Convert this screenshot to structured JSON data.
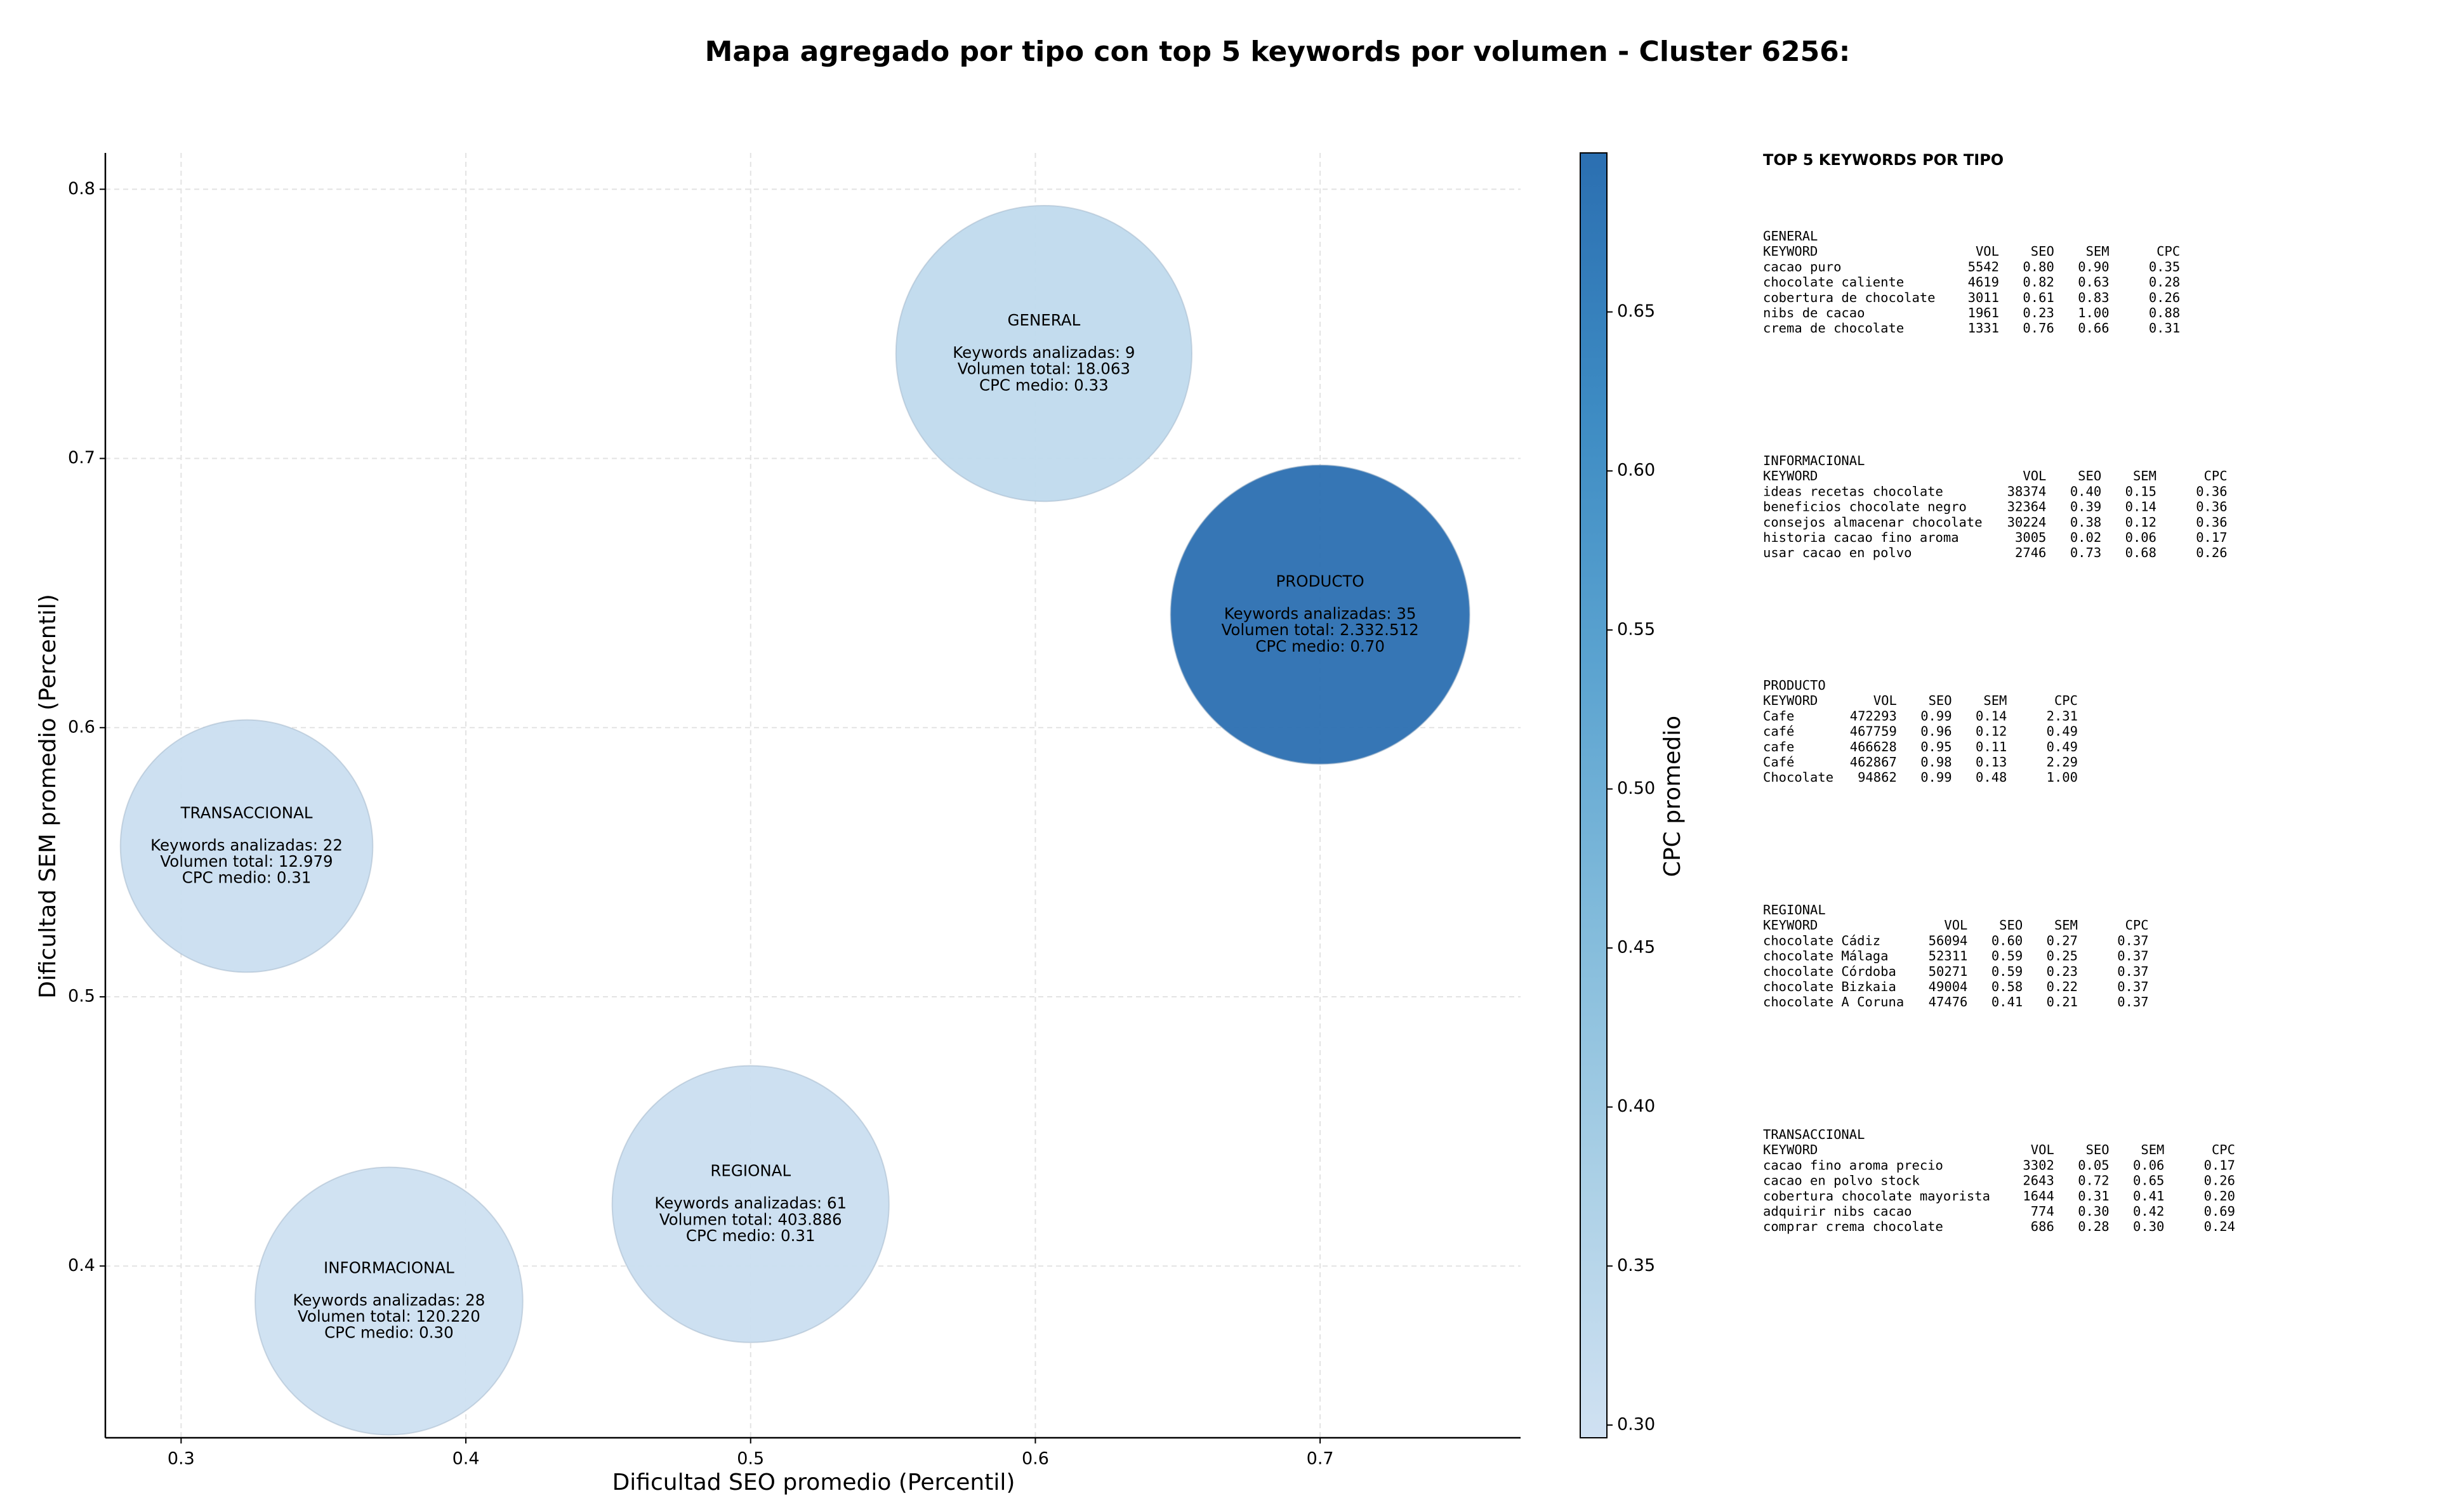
{
  "chart_data": {
    "type": "scatter",
    "title": "Mapa agregado por tipo con top 5 keywords por volumen - Cluster 6256:",
    "x_label": "Dificultad SEO promedio (Percentil)",
    "y_label": "Dificultad SEM promedio (Percentil)",
    "colorbar_label": "CPC promedio",
    "xlim": [
      0.2734,
      0.7704
    ],
    "ylim": [
      0.3362,
      0.8135
    ],
    "xticks": [
      {
        "value": 0.3,
        "label": "0.3"
      },
      {
        "value": 0.4,
        "label": "0.4"
      },
      {
        "value": 0.5,
        "label": "0.5"
      },
      {
        "value": 0.6,
        "label": "0.6"
      },
      {
        "value": 0.7,
        "label": "0.7"
      }
    ],
    "yticks": [
      {
        "value": 0.4,
        "label": "0.4"
      },
      {
        "value": 0.5,
        "label": "0.5"
      },
      {
        "value": 0.6,
        "label": "0.6"
      },
      {
        "value": 0.7,
        "label": "0.7"
      },
      {
        "value": 0.8,
        "label": "0.8"
      }
    ],
    "clim": [
      0.296,
      0.7
    ],
    "cticks": [
      {
        "value": 0.3,
        "label": "0.30"
      },
      0.35,
      {
        "value": 0.4,
        "label": "0.40"
      },
      0.45,
      {
        "value": 0.5,
        "label": "0.50"
      },
      0.55,
      {
        "value": 0.6,
        "label": "0.60"
      },
      0.65
    ],
    "cmap_colors": [
      "#d0e1f2",
      "#abd0e6",
      "#82bbdb",
      "#5ba3d0",
      "#3d8bc3",
      "#2b6fb1"
    ],
    "grid": true,
    "x": [
      0.603,
      0.7,
      0.323,
      0.373,
      0.5
    ],
    "y": [
      0.739,
      0.642,
      0.556,
      0.387,
      0.423
    ],
    "sizes": [
      8800,
      9000,
      6400,
      7200,
      7700
    ],
    "color_values": [
      0.33,
      0.7,
      0.31,
      0.3,
      0.31
    ],
    "annotations": [
      [
        "GENERAL",
        "Keywords analizadas: 9",
        "Volumen total: 18.063",
        "CPC medio: 0.33"
      ],
      [
        "PRODUCTO",
        "Keywords analizadas: 35",
        "Volumen total: 2.332.512",
        "CPC medio: 0.70"
      ],
      [
        "TRANSACCIONAL",
        "Keywords analizadas: 22",
        "Volumen total: 12.979",
        "CPC medio: 0.31"
      ],
      [
        "INFORMACIONAL",
        "Keywords analizadas: 28",
        "Volumen total: 120.220",
        "CPC medio: 0.30"
      ],
      [
        "REGIONAL",
        "Keywords analizadas: 61",
        "Volumen total: 403.886",
        "CPC medio: 0.31"
      ]
    ]
  },
  "side_panel": {
    "title": "TOP 5 KEYWORDS POR TIPO",
    "header": [
      "KEYWORD",
      "VOL",
      "SEO",
      "SEM",
      "CPC"
    ],
    "groups": [
      {
        "name": "GENERAL",
        "rows": [
          [
            "cacao puro",
            "5542",
            "0.80",
            "0.90",
            "0.35"
          ],
          [
            "chocolate caliente",
            "4619",
            "0.82",
            "0.63",
            "0.28"
          ],
          [
            "cobertura de chocolate",
            "3011",
            "0.61",
            "0.83",
            "0.26"
          ],
          [
            "nibs de cacao",
            "1961",
            "0.23",
            "1.00",
            "0.88"
          ],
          [
            "crema de chocolate",
            "1331",
            "0.76",
            "0.66",
            "0.31"
          ]
        ]
      },
      {
        "name": "INFORMACIONAL",
        "rows": [
          [
            "ideas recetas chocolate",
            "38374",
            "0.40",
            "0.15",
            "0.36"
          ],
          [
            "beneficios chocolate negro",
            "32364",
            "0.39",
            "0.14",
            "0.36"
          ],
          [
            "consejos almacenar chocolate",
            "30224",
            "0.38",
            "0.12",
            "0.36"
          ],
          [
            "historia cacao fino aroma",
            "3005",
            "0.02",
            "0.06",
            "0.17"
          ],
          [
            "usar cacao en polvo",
            "2746",
            "0.73",
            "0.68",
            "0.26"
          ]
        ]
      },
      {
        "name": "PRODUCTO",
        "rows": [
          [
            "Cafe",
            "472293",
            "0.99",
            "0.14",
            "2.31"
          ],
          [
            "café",
            "467759",
            "0.96",
            "0.12",
            "0.49"
          ],
          [
            "cafe",
            "466628",
            "0.95",
            "0.11",
            "0.49"
          ],
          [
            "Café",
            "462867",
            "0.98",
            "0.13",
            "2.29"
          ],
          [
            "Chocolate",
            "94862",
            "0.99",
            "0.48",
            "1.00"
          ]
        ]
      },
      {
        "name": "REGIONAL",
        "rows": [
          [
            "chocolate Cádiz",
            "56094",
            "0.60",
            "0.27",
            "0.37"
          ],
          [
            "chocolate Málaga",
            "52311",
            "0.59",
            "0.25",
            "0.37"
          ],
          [
            "chocolate Córdoba",
            "50271",
            "0.59",
            "0.23",
            "0.37"
          ],
          [
            "chocolate Bizkaia",
            "49004",
            "0.58",
            "0.22",
            "0.37"
          ],
          [
            "chocolate A Coruna",
            "47476",
            "0.41",
            "0.21",
            "0.37"
          ]
        ]
      },
      {
        "name": "TRANSACCIONAL",
        "rows": [
          [
            "cacao fino aroma precio",
            "3302",
            "0.05",
            "0.06",
            "0.17"
          ],
          [
            "cacao en polvo stock",
            "2643",
            "0.72",
            "0.65",
            "0.26"
          ],
          [
            "cobertura chocolate mayorista",
            "1644",
            "0.31",
            "0.41",
            "0.20"
          ],
          [
            "adquirir nibs cacao",
            "774",
            "0.30",
            "0.42",
            "0.69"
          ],
          [
            "comprar crema chocolate",
            "686",
            "0.28",
            "0.30",
            "0.24"
          ]
        ]
      }
    ]
  }
}
